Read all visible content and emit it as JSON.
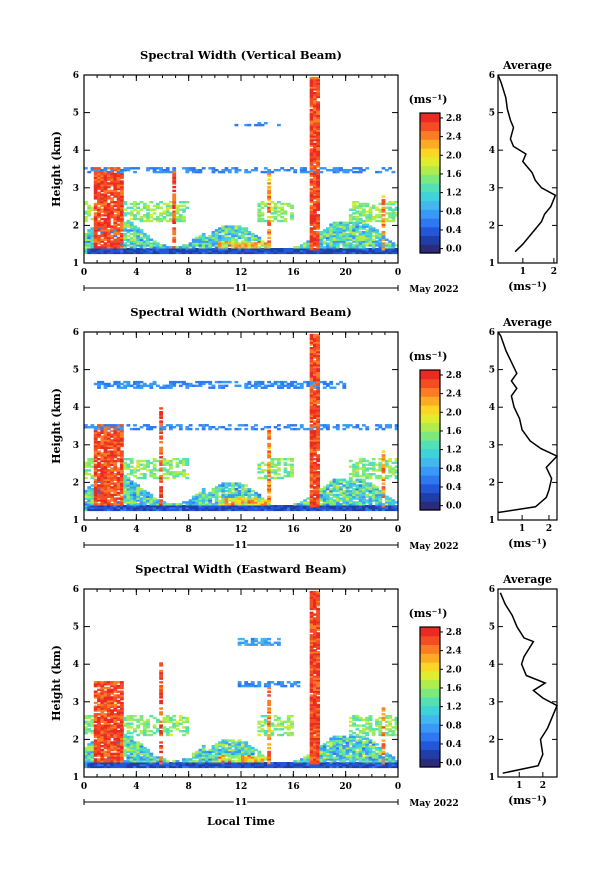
{
  "figure": {
    "xlabel_bottom": "Local Time",
    "date_label": "May 2022",
    "day_label": "11"
  },
  "chart_data": [
    {
      "type": "heatmap",
      "title": "Spectral Width (Vertical Beam)",
      "xlabel": "",
      "ylabel": "Height (km)",
      "xlim": [
        0,
        24
      ],
      "ylim": [
        1,
        6
      ],
      "xticks": [
        "0",
        "4",
        "8",
        "12",
        "16",
        "20",
        "0"
      ],
      "yticks": [
        "1",
        "2",
        "3",
        "4",
        "5",
        "6"
      ],
      "colorbar": {
        "label": "(ms⁻¹)",
        "ticks": [
          "0.0",
          "0.4",
          "0.8",
          "1.2",
          "1.6",
          "2.0",
          "2.4",
          "2.8"
        ],
        "range": [
          0,
          3.0
        ]
      },
      "profile": {
        "title": "Average",
        "xlabel": "(ms⁻¹)",
        "xticks": [
          "1",
          "2"
        ],
        "xlim": [
          0.2,
          2.1
        ],
        "yticks": [
          "1",
          "2",
          "3",
          "4",
          "5",
          "6"
        ],
        "points": [
          [
            0.75,
            1.3
          ],
          [
            1.0,
            1.5
          ],
          [
            1.3,
            1.8
          ],
          [
            1.6,
            2.1
          ],
          [
            1.7,
            2.3
          ],
          [
            1.9,
            2.5
          ],
          [
            2.05,
            2.8
          ],
          [
            1.6,
            3.0
          ],
          [
            1.4,
            3.2
          ],
          [
            1.3,
            3.4
          ],
          [
            1.0,
            3.7
          ],
          [
            1.1,
            3.9
          ],
          [
            0.7,
            4.1
          ],
          [
            0.6,
            4.3
          ],
          [
            0.7,
            4.6
          ],
          [
            0.6,
            4.8
          ],
          [
            0.5,
            5.1
          ],
          [
            0.45,
            5.4
          ],
          [
            0.3,
            5.8
          ],
          [
            0.2,
            6.0
          ]
        ]
      }
    },
    {
      "type": "heatmap",
      "title": "Spectral Width (Northward Beam)",
      "xlabel": "",
      "ylabel": "Height (km)",
      "xlim": [
        0,
        24
      ],
      "ylim": [
        1,
        6
      ],
      "xticks": [
        "0",
        "4",
        "8",
        "12",
        "16",
        "20",
        "0"
      ],
      "yticks": [
        "1",
        "2",
        "3",
        "4",
        "5",
        "6"
      ],
      "colorbar": {
        "label": "(ms⁻¹)",
        "ticks": [
          "0.0",
          "0.4",
          "0.8",
          "1.2",
          "1.6",
          "2.0",
          "2.4",
          "2.8"
        ],
        "range": [
          0,
          3.0
        ]
      },
      "profile": {
        "title": "Average",
        "xlabel": "(ms⁻¹)",
        "xticks": [
          "1",
          "2"
        ],
        "xlim": [
          0.1,
          2.3
        ],
        "yticks": [
          "1",
          "2",
          "3",
          "4",
          "5",
          "6"
        ],
        "points": [
          [
            0.1,
            1.2
          ],
          [
            1.5,
            1.35
          ],
          [
            1.9,
            1.6
          ],
          [
            2.0,
            1.8
          ],
          [
            2.1,
            2.1
          ],
          [
            1.9,
            2.4
          ],
          [
            2.3,
            2.7
          ],
          [
            1.7,
            2.9
          ],
          [
            1.3,
            3.1
          ],
          [
            1.0,
            3.4
          ],
          [
            0.9,
            3.7
          ],
          [
            0.7,
            4.0
          ],
          [
            0.6,
            4.3
          ],
          [
            0.8,
            4.5
          ],
          [
            0.6,
            4.7
          ],
          [
            0.8,
            4.9
          ],
          [
            0.6,
            5.2
          ],
          [
            0.4,
            5.5
          ],
          [
            0.2,
            5.9
          ],
          [
            0.1,
            6.0
          ]
        ]
      }
    },
    {
      "type": "heatmap",
      "title": "Spectral Width (Eastward Beam)",
      "xlabel": "Local Time",
      "ylabel": "Height (km)",
      "xlim": [
        0,
        24
      ],
      "ylim": [
        1,
        6
      ],
      "xticks": [
        "0",
        "4",
        "8",
        "12",
        "16",
        "20",
        "0"
      ],
      "yticks": [
        "1",
        "2",
        "3",
        "4",
        "5",
        "6"
      ],
      "colorbar": {
        "label": "(ms⁻¹)",
        "ticks": [
          "0.0",
          "0.4",
          "0.8",
          "1.2",
          "1.6",
          "2.0",
          "2.4",
          "2.8"
        ],
        "range": [
          0,
          3.0
        ]
      },
      "profile": {
        "title": "Average",
        "xlabel": "(ms⁻¹)",
        "xticks": [
          "1",
          "2"
        ],
        "xlim": [
          0.1,
          2.6
        ],
        "yticks": [
          "1",
          "2",
          "3",
          "4",
          "5",
          "6"
        ],
        "points": [
          [
            0.3,
            1.1
          ],
          [
            1.8,
            1.3
          ],
          [
            2.0,
            1.6
          ],
          [
            1.9,
            2.0
          ],
          [
            2.2,
            2.3
          ],
          [
            2.6,
            2.9
          ],
          [
            2.0,
            3.1
          ],
          [
            1.6,
            3.3
          ],
          [
            2.1,
            3.5
          ],
          [
            1.3,
            3.7
          ],
          [
            1.1,
            4.0
          ],
          [
            1.2,
            4.2
          ],
          [
            1.6,
            4.6
          ],
          [
            1.2,
            4.7
          ],
          [
            0.9,
            5.0
          ],
          [
            0.7,
            5.3
          ],
          [
            0.4,
            5.6
          ],
          [
            0.2,
            5.9
          ]
        ]
      }
    }
  ]
}
